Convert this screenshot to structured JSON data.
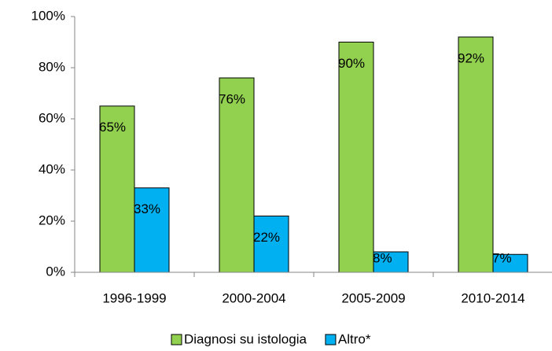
{
  "chart_data": {
    "type": "bar",
    "categories": [
      "1996-1999",
      "2000-2004",
      "2005-2009",
      "2010-2014"
    ],
    "series": [
      {
        "name": "Diagnosi su istologia",
        "color": "#92d050",
        "values": [
          65,
          76,
          90,
          92
        ],
        "value_labels": [
          "65%",
          "76%",
          "90%",
          "92%"
        ]
      },
      {
        "name": "Altro*",
        "color": "#00b0f0",
        "values": [
          33,
          22,
          8,
          7
        ],
        "value_labels": [
          "33%",
          "22%",
          "8%",
          "7%"
        ]
      }
    ],
    "ylim": [
      0,
      100
    ],
    "yticks": [
      {
        "value": 0,
        "label": "0%"
      },
      {
        "value": 20,
        "label": "20%"
      },
      {
        "value": 40,
        "label": "40%"
      },
      {
        "value": 60,
        "label": "60%"
      },
      {
        "value": 80,
        "label": "80%"
      },
      {
        "value": 100,
        "label": "100%"
      }
    ],
    "grid": false,
    "legend": "bottom"
  }
}
